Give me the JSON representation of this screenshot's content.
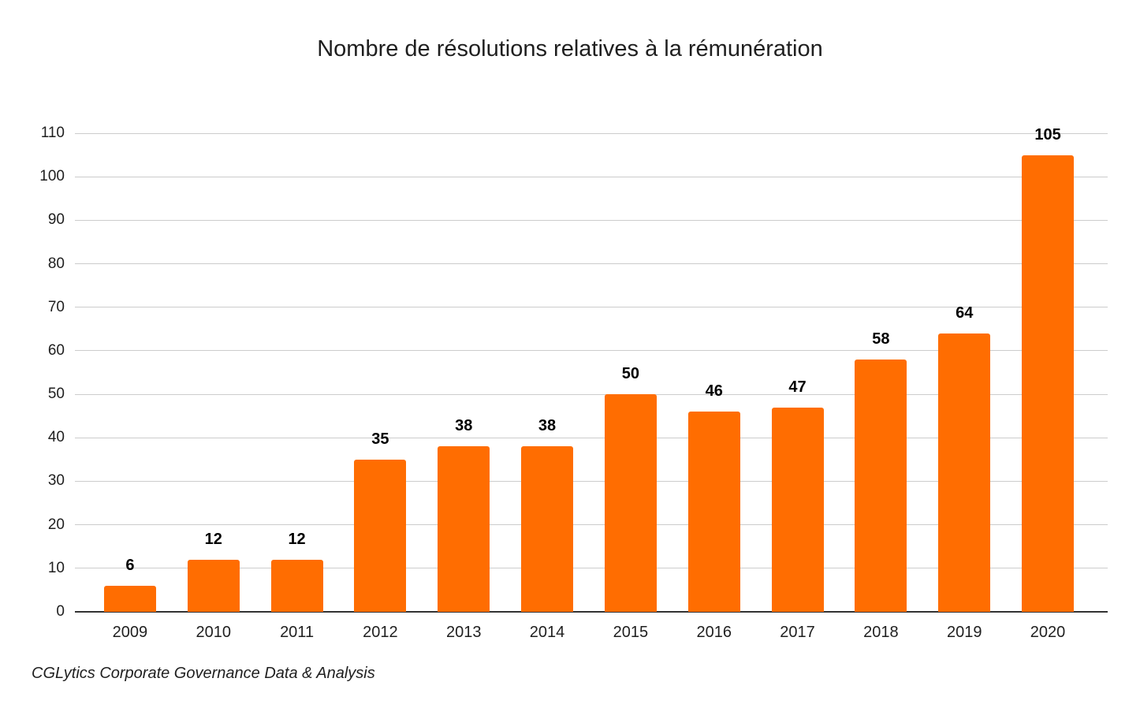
{
  "title": "Nombre de résolutions relatives à la rémunération",
  "source_note": "CGLytics Corporate Governance Data & Analysis",
  "chart_data": {
    "type": "bar",
    "title": "Nombre de résolutions relatives à la rémunération",
    "categories": [
      "2009",
      "2010",
      "2011",
      "2012",
      "2013",
      "2014",
      "2015",
      "2016",
      "2017",
      "2018",
      "2019",
      "2020"
    ],
    "values": [
      6,
      12,
      12,
      35,
      38,
      38,
      50,
      46,
      47,
      58,
      64,
      105
    ],
    "xlabel": "",
    "ylabel": "",
    "ylim": [
      0,
      110
    ],
    "yticks": [
      0,
      10,
      20,
      30,
      40,
      50,
      60,
      70,
      80,
      90,
      100,
      110
    ],
    "grid": true,
    "legend": false,
    "value_labels_shown": true,
    "bar_color": "#FF6D01",
    "grid_color": "#CCCCCC",
    "axis_color": "#333333",
    "label_color": "#000000",
    "tick_label_color": "#1F1F1F",
    "source_note": "CGLytics Corporate Governance Data & Analysis"
  }
}
